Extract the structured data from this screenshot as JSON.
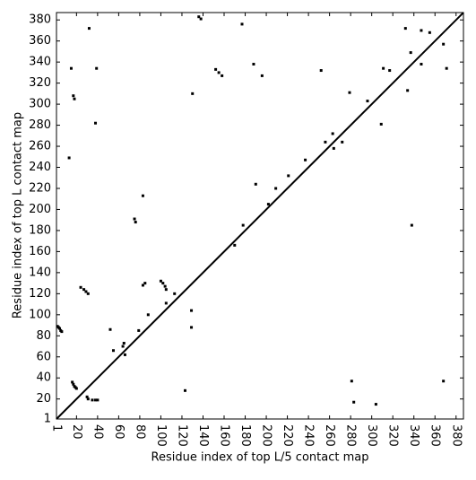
{
  "chart_data": {
    "type": "scatter",
    "xlabel": "Residue index of top L/5 contact map",
    "ylabel": "Residue index of top L contact map",
    "color": "#000000",
    "xlim": [
      1,
      387
    ],
    "ylim": [
      1,
      387
    ],
    "xticks": [
      1,
      20,
      40,
      60,
      80,
      100,
      120,
      140,
      160,
      180,
      200,
      220,
      240,
      260,
      280,
      300,
      320,
      340,
      360,
      380
    ],
    "yticks": [
      1,
      20,
      40,
      60,
      80,
      100,
      120,
      140,
      160,
      180,
      200,
      220,
      240,
      260,
      280,
      300,
      320,
      340,
      360,
      380
    ],
    "x": [
      2,
      3,
      4,
      5,
      6,
      16,
      17,
      18,
      19,
      20,
      30,
      31,
      35,
      38,
      40,
      17,
      18,
      24,
      27,
      29,
      31,
      65,
      75,
      76,
      83,
      85,
      100,
      102,
      104,
      105,
      136,
      138,
      130,
      83,
      152,
      155,
      158,
      177,
      188,
      196,
      252,
      237,
      256,
      263,
      272,
      264,
      279,
      304,
      309,
      311,
      317,
      332,
      337,
      334,
      347,
      355,
      368,
      371,
      338,
      368,
      281,
      283,
      123,
      170,
      178,
      190,
      209,
      221,
      52,
      79,
      13,
      15,
      32,
      39,
      38,
      105,
      113,
      129,
      129,
      55,
      88,
      202,
      296,
      347,
      64,
      66
    ],
    "values": [
      89,
      88,
      87,
      85,
      84,
      36,
      34,
      32,
      31,
      30,
      22,
      20,
      19,
      19,
      19,
      308,
      305,
      126,
      124,
      122,
      120,
      73,
      191,
      188,
      128,
      130,
      132,
      130,
      127,
      124,
      383,
      381,
      310,
      213,
      333,
      330,
      327,
      376,
      338,
      327,
      332,
      247,
      264,
      272,
      264,
      258,
      311,
      15,
      281,
      334,
      332,
      372,
      349,
      313,
      338,
      368,
      357,
      334,
      185,
      37,
      37,
      17,
      28,
      166,
      185,
      224,
      220,
      232,
      86,
      85,
      249,
      334,
      372,
      334,
      282,
      111,
      120,
      104,
      88,
      66,
      100,
      205,
      303,
      370,
      70,
      62
    ]
  }
}
